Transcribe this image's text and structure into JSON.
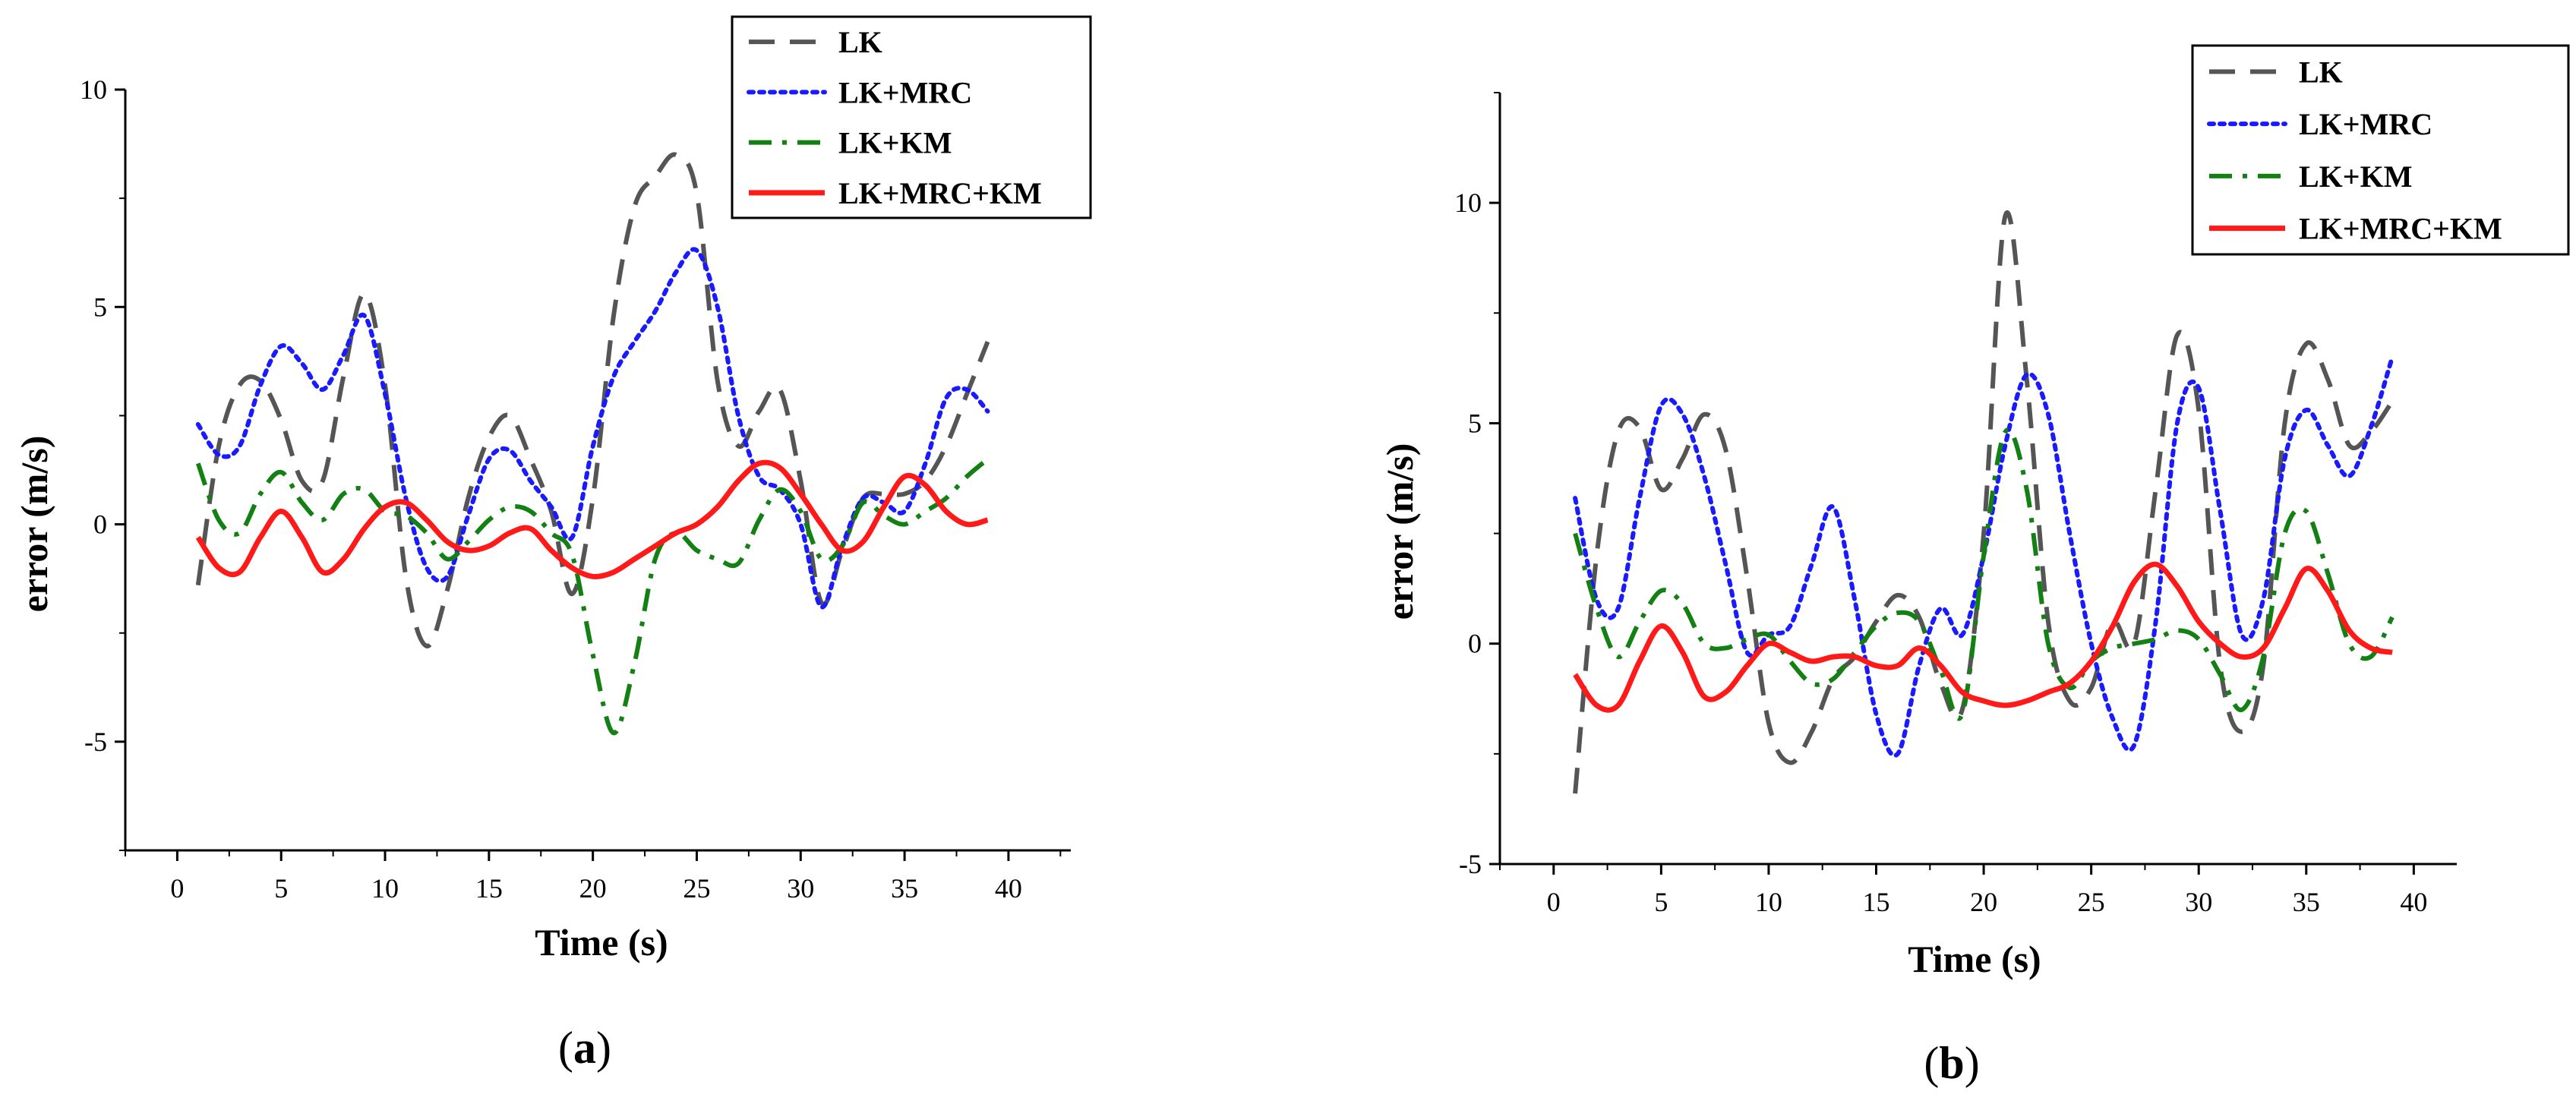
{
  "chart_data": [
    {
      "type": "line",
      "panel_label": "a",
      "xlabel": "Time (s)",
      "ylabel": "error (m/s)",
      "xlim": [
        -2.5,
        43
      ],
      "ylim": [
        -7.5,
        10
      ],
      "xticks": [
        0,
        5,
        10,
        15,
        20,
        25,
        30,
        35,
        40
      ],
      "xtick_labels": [
        "0",
        "5",
        "10",
        "15",
        "20",
        "25",
        "30",
        "35",
        "40"
      ],
      "yticks": [
        -5,
        0,
        5,
        10
      ],
      "ytick_labels": [
        "-5",
        "0",
        "5",
        "10"
      ],
      "legend_position": "top-right",
      "series": [
        {
          "name": "LK",
          "color": "#555555",
          "dash": "dash",
          "x": [
            1,
            2,
            3,
            4,
            5,
            6,
            7,
            8,
            9,
            10,
            11,
            12,
            13,
            14,
            15,
            16,
            17,
            18,
            19,
            20,
            21,
            22,
            23,
            24,
            25,
            26,
            27,
            28,
            29,
            30,
            31,
            32,
            33,
            34,
            35,
            36,
            37,
            38,
            39
          ],
          "y": [
            -1.4,
            1.8,
            3.2,
            3.3,
            2.4,
            1.0,
            1.0,
            3.4,
            5.3,
            3.2,
            -1.2,
            -2.8,
            -1.5,
            0.6,
            2.0,
            2.5,
            1.5,
            0.3,
            -1.6,
            0.6,
            4.8,
            7.3,
            8.0,
            8.5,
            7.6,
            3.3,
            1.8,
            2.6,
            3.1,
            1.0,
            -1.8,
            -0.6,
            0.6,
            0.7,
            0.7,
            1.0,
            1.8,
            3.0,
            4.2
          ]
        },
        {
          "name": "LK+MRC",
          "color": "#1a1aff",
          "dash": "dot",
          "x": [
            1,
            2,
            3,
            4,
            5,
            6,
            7,
            8,
            9,
            10,
            11,
            12,
            13,
            14,
            15,
            16,
            17,
            18,
            19,
            20,
            21,
            22,
            23,
            24,
            25,
            26,
            27,
            28,
            29,
            30,
            31,
            32,
            33,
            34,
            35,
            36,
            37,
            38,
            39
          ],
          "y": [
            2.3,
            1.6,
            1.8,
            3.2,
            4.1,
            3.7,
            3.1,
            3.9,
            4.8,
            3.0,
            0.6,
            -1.0,
            -1.2,
            0.2,
            1.5,
            1.7,
            1.0,
            0.4,
            -0.3,
            1.8,
            3.4,
            4.2,
            4.9,
            5.8,
            6.3,
            5.0,
            2.5,
            1.1,
            0.8,
            0.0,
            -1.9,
            -0.5,
            0.6,
            0.5,
            0.3,
            1.4,
            2.9,
            3.1,
            2.6
          ]
        },
        {
          "name": "LK+KM",
          "color": "#128012",
          "dash": "dashdot",
          "x": [
            1,
            2,
            3,
            4,
            5,
            6,
            7,
            8,
            9,
            10,
            11,
            12,
            13,
            14,
            15,
            16,
            17,
            18,
            19,
            20,
            21,
            22,
            23,
            24,
            25,
            26,
            27,
            28,
            29,
            30,
            31,
            32,
            33,
            34,
            35,
            36,
            37,
            38,
            39
          ],
          "y": [
            1.4,
            0.1,
            -0.2,
            0.7,
            1.2,
            0.5,
            0.1,
            0.7,
            0.8,
            0.3,
            0.2,
            -0.2,
            -0.8,
            -0.4,
            0.1,
            0.4,
            0.3,
            -0.2,
            -0.7,
            -3.0,
            -4.8,
            -3.2,
            -0.8,
            -0.2,
            -0.6,
            -0.8,
            -0.9,
            0.1,
            0.8,
            0.3,
            -0.8,
            -0.5,
            0.5,
            0.2,
            0.0,
            0.3,
            0.6,
            1.1,
            1.5
          ]
        },
        {
          "name": "LK+MRC+KM",
          "color": "#ff1a1a",
          "dash": "solid",
          "x": [
            1,
            2,
            3,
            4,
            5,
            6,
            7,
            8,
            9,
            10,
            11,
            12,
            13,
            14,
            15,
            16,
            17,
            18,
            19,
            20,
            21,
            22,
            23,
            24,
            25,
            26,
            27,
            28,
            29,
            30,
            31,
            32,
            33,
            34,
            35,
            36,
            37,
            38,
            39
          ],
          "y": [
            -0.3,
            -1.0,
            -1.1,
            -0.3,
            0.3,
            -0.3,
            -1.1,
            -0.8,
            -0.1,
            0.4,
            0.5,
            0.1,
            -0.4,
            -0.6,
            -0.5,
            -0.2,
            -0.1,
            -0.6,
            -1.0,
            -1.2,
            -1.1,
            -0.8,
            -0.5,
            -0.2,
            0.0,
            0.4,
            1.0,
            1.4,
            1.3,
            0.7,
            0.0,
            -0.6,
            -0.4,
            0.4,
            1.1,
            0.9,
            0.3,
            0.0,
            0.1
          ]
        }
      ]
    },
    {
      "type": "line",
      "panel_label": "b",
      "xlabel": "Time (s)",
      "ylabel": "error (m/s)",
      "xlim": [
        -2.5,
        42
      ],
      "ylim": [
        -5,
        12.5
      ],
      "xticks": [
        0,
        5,
        10,
        15,
        20,
        25,
        30,
        35,
        40
      ],
      "xtick_labels": [
        "0",
        "5",
        "10",
        "15",
        "20",
        "25",
        "30",
        "35",
        "40"
      ],
      "yticks": [
        -5,
        0,
        5,
        10
      ],
      "ytick_labels": [
        "-5",
        "0",
        "5",
        "10"
      ],
      "legend_position": "top-right",
      "series": [
        {
          "name": "LK",
          "color": "#555555",
          "dash": "dash",
          "x": [
            1,
            2,
            3,
            4,
            5,
            6,
            7,
            8,
            9,
            10,
            11,
            12,
            13,
            14,
            15,
            16,
            17,
            18,
            19,
            20,
            21,
            22,
            23,
            24,
            25,
            26,
            27,
            28,
            29,
            30,
            31,
            32,
            33,
            34,
            35,
            36,
            37,
            38,
            39
          ],
          "y": [
            -3.4,
            2.0,
            4.8,
            4.9,
            3.5,
            4.2,
            5.2,
            4.4,
            1.5,
            -1.8,
            -2.7,
            -2.0,
            -0.8,
            -0.3,
            0.5,
            1.1,
            0.6,
            -0.9,
            -1.5,
            2.5,
            9.7,
            6.0,
            0.5,
            -1.3,
            -1.0,
            0.5,
            0.0,
            3.5,
            7.0,
            5.3,
            -0.5,
            -2.0,
            -0.5,
            5.0,
            6.8,
            6.0,
            4.5,
            4.8,
            5.5
          ]
        },
        {
          "name": "LK+MRC",
          "color": "#1a1aff",
          "dash": "dot",
          "x": [
            1,
            2,
            3,
            4,
            5,
            6,
            7,
            8,
            9,
            10,
            11,
            12,
            13,
            14,
            15,
            16,
            17,
            18,
            19,
            20,
            21,
            22,
            23,
            24,
            25,
            26,
            27,
            28,
            29,
            30,
            31,
            32,
            33,
            34,
            35,
            36,
            37,
            38,
            39
          ],
          "y": [
            3.3,
            1.0,
            0.8,
            3.3,
            5.4,
            5.2,
            3.8,
            1.8,
            -0.2,
            0.2,
            0.4,
            1.8,
            3.1,
            1.0,
            -1.6,
            -2.5,
            -0.5,
            0.8,
            0.2,
            2.0,
            4.5,
            6.1,
            5.2,
            2.5,
            0.0,
            -1.7,
            -2.3,
            0.5,
            5.0,
            5.8,
            3.0,
            0.2,
            1.0,
            4.2,
            5.3,
            4.5,
            3.8,
            4.9,
            6.5
          ]
        },
        {
          "name": "LK+KM",
          "color": "#128012",
          "dash": "dashdot",
          "x": [
            1,
            2,
            3,
            4,
            5,
            6,
            7,
            8,
            9,
            10,
            11,
            12,
            13,
            14,
            15,
            16,
            17,
            18,
            19,
            20,
            21,
            22,
            23,
            24,
            25,
            26,
            27,
            28,
            29,
            30,
            31,
            32,
            33,
            34,
            35,
            36,
            37,
            38,
            39
          ],
          "y": [
            2.5,
            0.8,
            -0.3,
            0.5,
            1.2,
            0.9,
            0.0,
            -0.1,
            0.1,
            0.2,
            -0.4,
            -0.9,
            -0.8,
            -0.2,
            0.4,
            0.7,
            0.5,
            -0.6,
            -1.6,
            2.0,
            4.8,
            3.5,
            0.0,
            -1.0,
            -0.4,
            -0.1,
            0.0,
            0.1,
            0.3,
            0.1,
            -0.7,
            -1.5,
            -0.3,
            2.5,
            3.0,
            1.6,
            0.0,
            -0.3,
            0.6
          ]
        },
        {
          "name": "LK+MRC+KM",
          "color": "#ff1a1a",
          "dash": "solid",
          "x": [
            1,
            2,
            3,
            4,
            5,
            6,
            7,
            8,
            9,
            10,
            11,
            12,
            13,
            14,
            15,
            16,
            17,
            18,
            19,
            20,
            21,
            22,
            23,
            24,
            25,
            26,
            27,
            28,
            29,
            30,
            31,
            32,
            33,
            34,
            35,
            36,
            37,
            38,
            39
          ],
          "y": [
            -0.7,
            -1.4,
            -1.4,
            -0.4,
            0.4,
            -0.2,
            -1.2,
            -1.1,
            -0.5,
            0.0,
            -0.2,
            -0.4,
            -0.3,
            -0.3,
            -0.5,
            -0.5,
            -0.1,
            -0.5,
            -1.1,
            -1.3,
            -1.4,
            -1.3,
            -1.1,
            -0.9,
            -0.4,
            0.4,
            1.4,
            1.8,
            1.3,
            0.5,
            0.0,
            -0.3,
            -0.1,
            0.8,
            1.7,
            1.2,
            0.3,
            -0.1,
            -0.2
          ]
        }
      ]
    }
  ]
}
